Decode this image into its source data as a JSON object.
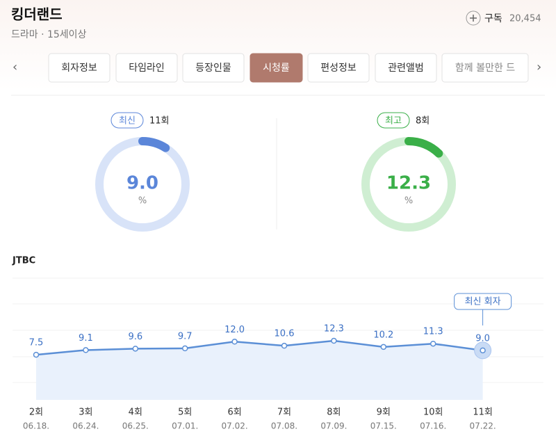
{
  "header": {
    "title": "킹더랜드",
    "subtitle": "드라마 · 15세이상",
    "subscribe_label": "구독",
    "subscribers": "20,454"
  },
  "tabs": [
    "회자정보",
    "타임라인",
    "등장인물",
    "시청률",
    "편성정보",
    "관련앨범",
    "함께 볼만한 드"
  ],
  "active_tab": 3,
  "summary": [
    {
      "badge": "최신",
      "episode": "11회",
      "value": "9.0",
      "unit": "%",
      "color": "#5b86d9",
      "track": "#d8e3f8"
    },
    {
      "badge": "최고",
      "episode": "8회",
      "value": "12.3",
      "unit": "%",
      "color": "#3aaf48",
      "track": "#cfeed2"
    }
  ],
  "chart_data": {
    "type": "line",
    "title": "JTBC",
    "categories": [
      "2회",
      "3회",
      "4회",
      "5회",
      "6회",
      "7회",
      "8회",
      "9회",
      "10회",
      "11회"
    ],
    "dates": [
      "06.18.",
      "06.24.",
      "06.25.",
      "07.01.",
      "07.02.",
      "07.08.",
      "07.09.",
      "07.15.",
      "07.16.",
      "07.22."
    ],
    "values": [
      7.5,
      9.1,
      9.6,
      9.7,
      12.0,
      10.6,
      12.3,
      10.2,
      11.3,
      9.0
    ],
    "value_labels": [
      "7.5",
      "9.1",
      "9.6",
      "9.7",
      "12.0",
      "10.6",
      "12.3",
      "10.2",
      "11.3",
      "9.0"
    ],
    "annotation": "최신 회자",
    "color": "#5b8fd6",
    "ylim": [
      -8,
      35
    ]
  }
}
